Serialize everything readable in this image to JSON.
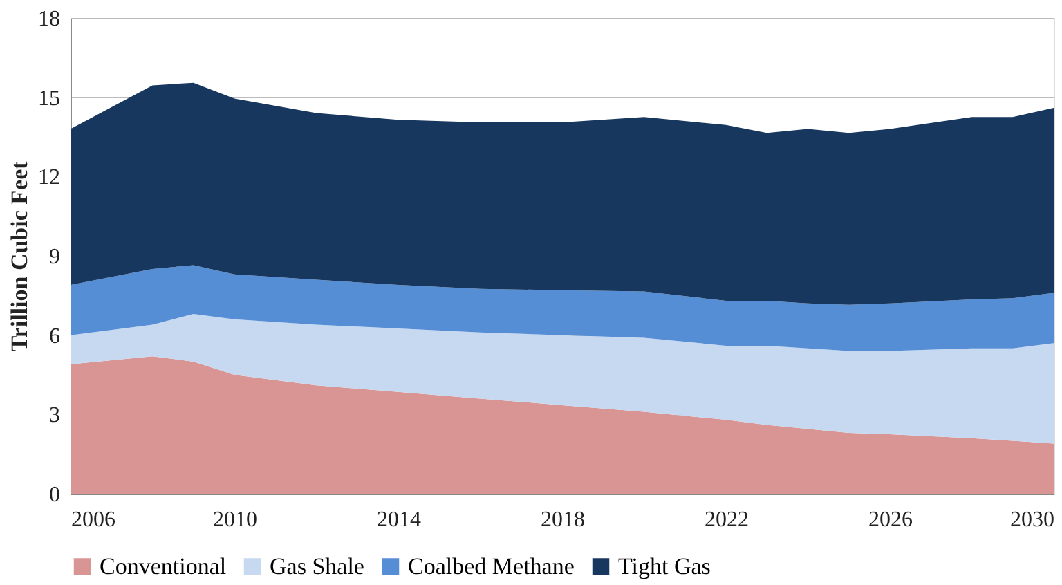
{
  "chart_data": {
    "type": "area",
    "stacked": true,
    "ylabel": "Trillion Cubic Feet",
    "x": [
      2006,
      2008,
      2009,
      2010,
      2012,
      2014,
      2016,
      2018,
      2020,
      2022,
      2023,
      2024,
      2025,
      2026,
      2028,
      2029,
      2030
    ],
    "series": [
      {
        "name": "Conventional",
        "color": "#d99594",
        "values": [
          4.9,
          5.2,
          5.0,
          4.5,
          4.1,
          3.85,
          3.6,
          3.35,
          3.1,
          2.8,
          2.6,
          2.45,
          2.3,
          2.25,
          2.1,
          2.0,
          1.9
        ]
      },
      {
        "name": "Gas Shale",
        "color": "#c6d9f1",
        "values": [
          1.1,
          1.2,
          1.8,
          2.1,
          2.3,
          2.4,
          2.5,
          2.65,
          2.8,
          2.8,
          3.0,
          3.05,
          3.1,
          3.15,
          3.4,
          3.5,
          3.8
        ]
      },
      {
        "name": "Coalbed Methane",
        "color": "#558ed5",
        "values": [
          1.9,
          2.1,
          1.85,
          1.7,
          1.7,
          1.65,
          1.65,
          1.7,
          1.75,
          1.7,
          1.7,
          1.7,
          1.75,
          1.8,
          1.85,
          1.9,
          1.9
        ]
      },
      {
        "name": "Tight Gas",
        "color": "#17375e",
        "values": [
          5.9,
          6.95,
          6.9,
          6.65,
          6.3,
          6.25,
          6.3,
          6.35,
          6.6,
          6.65,
          6.35,
          6.6,
          6.5,
          6.6,
          6.9,
          6.85,
          7.0
        ]
      }
    ],
    "xlim": [
      2006,
      2030
    ],
    "xticks": [
      2006,
      2010,
      2014,
      2018,
      2022,
      2026,
      2030
    ],
    "ylim": [
      0,
      18
    ],
    "yticks": [
      0,
      3,
      6,
      9,
      12,
      15,
      18
    ],
    "grid": "y",
    "legend": "bottom"
  }
}
